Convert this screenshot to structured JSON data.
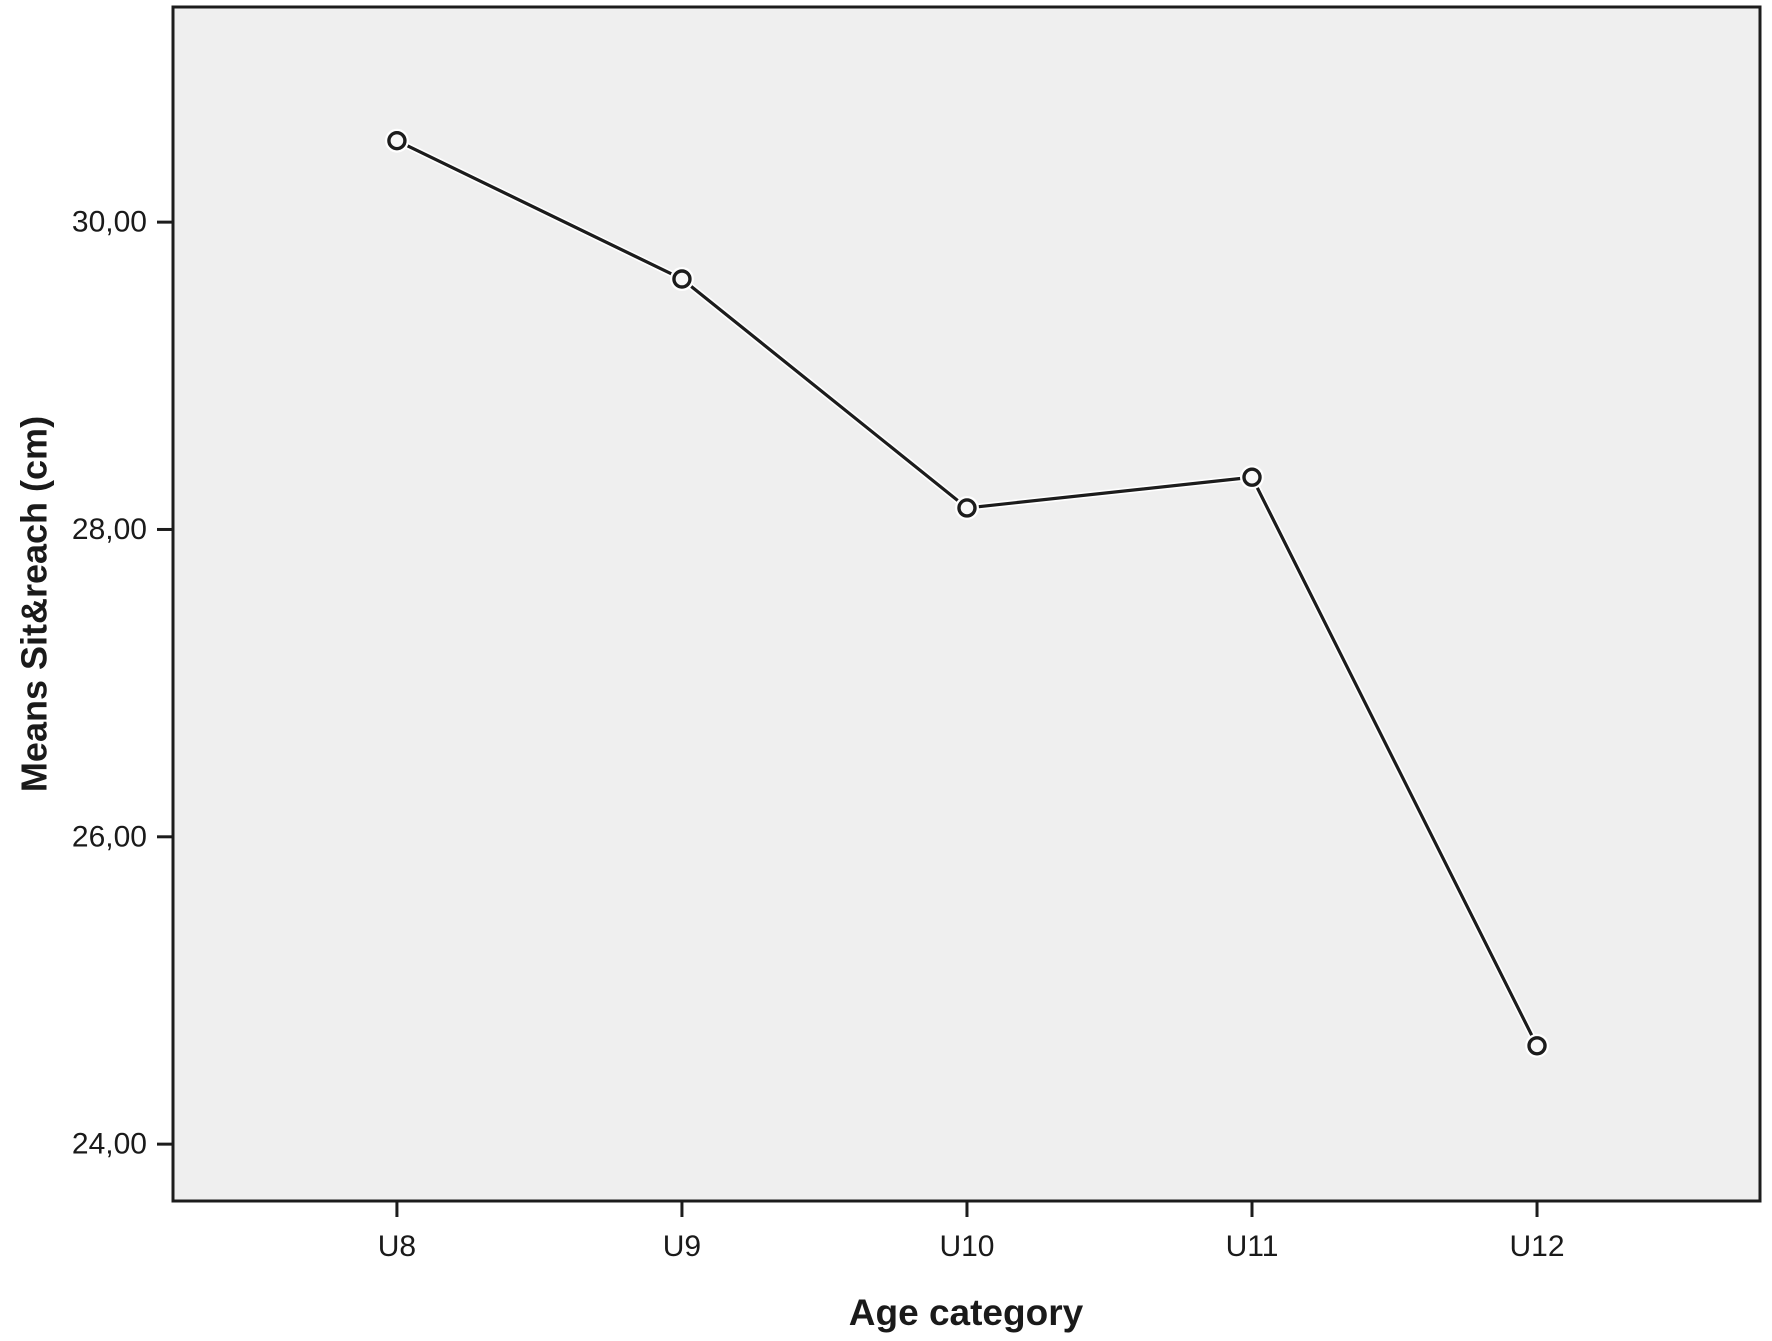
{
  "figure": {
    "background": "#ffffff",
    "plot_background": "#efefef",
    "frame_color": "#1c1c1c",
    "text_color": "#1a1a1a"
  },
  "chart_data": {
    "type": "line",
    "title": "",
    "xlabel": "Age category",
    "ylabel": "Means Sit&reach (cm)",
    "categories": [
      "U8",
      "U9",
      "U10",
      "U11",
      "U12"
    ],
    "series": [
      {
        "name": "Means Sit&reach (cm)",
        "values": [
          30.53,
          29.63,
          28.14,
          28.34,
          24.64
        ]
      }
    ],
    "ytick_labels": [
      "24,00",
      "26,00",
      "28,00",
      "30,00"
    ],
    "ytick_values": [
      24,
      26,
      28,
      30
    ],
    "ylim": [
      23.63,
      31.4
    ],
    "grid": false,
    "legend_position": "none",
    "line_color": "#1c1c1c",
    "marker": "open-circle",
    "marker_fill": "#f8f8f8",
    "marker_halo": "#ffffff",
    "decimal_separator": ","
  }
}
